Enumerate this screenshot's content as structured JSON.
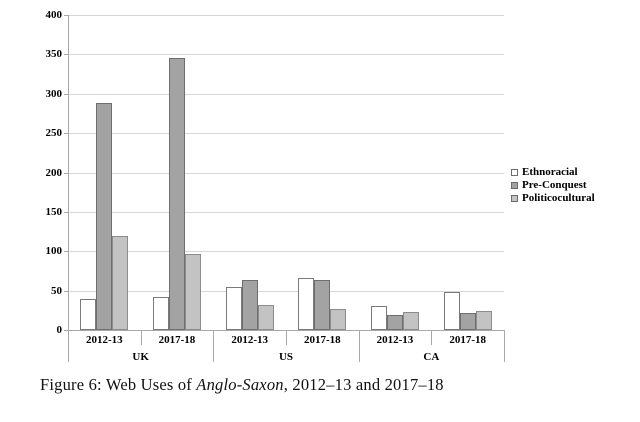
{
  "chart_data": {
    "type": "bar",
    "title": "",
    "groups": [
      {
        "label": "UK",
        "categories": [
          "2012-13",
          "2017-18"
        ]
      },
      {
        "label": "US",
        "categories": [
          "2012-13",
          "2017-18"
        ]
      },
      {
        "label": "CA",
        "categories": [
          "2012-13",
          "2017-18"
        ]
      }
    ],
    "categories_flat": [
      "2012-13",
      "2017-18",
      "2012-13",
      "2017-18",
      "2012-13",
      "2017-18"
    ],
    "series": [
      {
        "name": "Ethnoracial",
        "color": "#ffffff",
        "border": "#7a7a7a",
        "values": [
          40,
          42,
          55,
          66,
          31,
          48
        ]
      },
      {
        "name": "Pre-Conquest",
        "color": "#a3a3a3",
        "border": "#6e6e6e",
        "values": [
          288,
          345,
          64,
          64,
          19,
          22
        ]
      },
      {
        "name": "Politicocultural",
        "color": "#c3c3c3",
        "border": "#8c8c8c",
        "values": [
          120,
          96,
          32,
          27,
          23,
          24
        ]
      }
    ],
    "ylim": [
      0,
      400
    ],
    "yticks": [
      400,
      350,
      300,
      250,
      200,
      150,
      100,
      50,
      0
    ],
    "grid": true,
    "legend_position": "right",
    "colors": {
      "gridline": "#d6d6d6",
      "axis": "#a8a8a8",
      "text": "#000000",
      "background": "#ffffff"
    }
  },
  "legend": {
    "items": [
      {
        "label": "Ethnoracial",
        "swatch": "#ffffff"
      },
      {
        "label": "Pre-Conquest",
        "swatch": "#a3a3a3"
      },
      {
        "label": "Politicocultural",
        "swatch": "#c3c3c3"
      }
    ]
  },
  "caption": {
    "prefix": "Figure 6: Web Uses of ",
    "italic": "Anglo-Saxon",
    "suffix": ", 2012–13 and 2017–18"
  }
}
